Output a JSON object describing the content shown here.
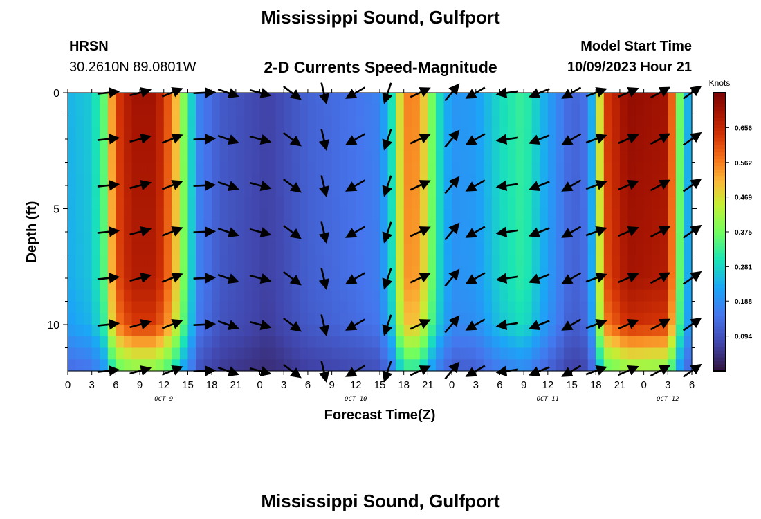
{
  "page": {
    "title": "Mississippi Sound, Gulfport",
    "station": "HRSN",
    "coordinates": "30.2610N  89.0801W",
    "subtitle": "2-D Currents Speed-Magnitude",
    "model_start_label": "Model Start Time",
    "model_start_value": "10/09/2023 Hour 21",
    "footer_title": "Mississippi Sound, Gulfport"
  },
  "chart_data": {
    "type": "heatmap",
    "title": "2-D Currents Speed-Magnitude",
    "xlabel": "Forecast Time(Z)",
    "ylabel": "Depth (ft)",
    "colorbar_label": "Knots",
    "colorbar_ticks": [
      0.094,
      0.188,
      0.281,
      0.375,
      0.469,
      0.562,
      0.656
    ],
    "colorbar_range": [
      0.0,
      0.75
    ],
    "x_range_hours": [
      0,
      78
    ],
    "x_tick_hours": [
      0,
      3,
      6,
      9,
      12,
      15,
      18,
      21,
      24,
      27,
      30,
      33,
      36,
      39,
      42,
      45,
      48,
      51,
      54,
      57,
      60,
      63,
      66,
      69,
      72,
      75,
      78
    ],
    "x_tick_labels": [
      "0",
      "3",
      "6",
      "9",
      "12",
      "15",
      "18",
      "21",
      "0",
      "3",
      "6",
      "9",
      "12",
      "15",
      "18",
      "21",
      "0",
      "3",
      "6",
      "9",
      "12",
      "15",
      "18",
      "21",
      "0",
      "3",
      "6"
    ],
    "date_labels": [
      {
        "text": "OCT 9",
        "hour": 12
      },
      {
        "text": "OCT 10",
        "hour": 36
      },
      {
        "text": "OCT 11",
        "hour": 60
      },
      {
        "text": "OCT 12",
        "hour": 75
      }
    ],
    "y_range_ft": [
      0,
      12
    ],
    "y_ticks": [
      0,
      5,
      10
    ],
    "y_minor_ticks": [
      1,
      2,
      3,
      4,
      6,
      7,
      8,
      9,
      11
    ],
    "y_inverted": true,
    "speed_profile": [
      {
        "hour": 0,
        "speed": 0.24
      },
      {
        "hour": 3,
        "speed": 0.27
      },
      {
        "hour": 4.5,
        "speed": 0.36
      },
      {
        "hour": 6,
        "speed": 0.62
      },
      {
        "hour": 8,
        "speed": 0.7
      },
      {
        "hour": 11,
        "speed": 0.7
      },
      {
        "hour": 13,
        "speed": 0.57
      },
      {
        "hour": 15,
        "speed": 0.33
      },
      {
        "hour": 16.5,
        "speed": 0.17
      },
      {
        "hour": 19,
        "speed": 0.11
      },
      {
        "hour": 25,
        "speed": 0.07
      },
      {
        "hour": 30,
        "speed": 0.12
      },
      {
        "hour": 36,
        "speed": 0.15
      },
      {
        "hour": 39,
        "speed": 0.17
      },
      {
        "hour": 40.5,
        "speed": 0.3
      },
      {
        "hour": 42,
        "speed": 0.56
      },
      {
        "hour": 44,
        "speed": 0.55
      },
      {
        "hour": 46,
        "speed": 0.32
      },
      {
        "hour": 48,
        "speed": 0.2
      },
      {
        "hour": 51,
        "speed": 0.21
      },
      {
        "hour": 54,
        "speed": 0.29
      },
      {
        "hour": 57,
        "speed": 0.33
      },
      {
        "hour": 60,
        "speed": 0.22
      },
      {
        "hour": 63,
        "speed": 0.12
      },
      {
        "hour": 65,
        "speed": 0.15
      },
      {
        "hour": 66,
        "speed": 0.32
      },
      {
        "hour": 67,
        "speed": 0.62
      },
      {
        "hour": 70,
        "speed": 0.72
      },
      {
        "hour": 75,
        "speed": 0.7
      },
      {
        "hour": 76,
        "speed": 0.48
      },
      {
        "hour": 77,
        "speed": 0.26
      },
      {
        "hour": 78,
        "speed": 0.22
      }
    ],
    "depth_factor": [
      {
        "depth": 0,
        "factor": 1.0
      },
      {
        "depth": 8,
        "factor": 0.97
      },
      {
        "depth": 10,
        "factor": 0.9
      },
      {
        "depth": 11,
        "factor": 0.72
      },
      {
        "depth": 12,
        "factor": 0.55
      }
    ],
    "direction_profile_deg": [
      {
        "hour": 0,
        "angle": 5
      },
      {
        "hour": 9,
        "angle": -15
      },
      {
        "hour": 15,
        "angle": -25
      },
      {
        "hour": 19,
        "angle": 20
      },
      {
        "hour": 24,
        "angle": 15
      },
      {
        "hour": 27,
        "angle": 20
      },
      {
        "hour": 30,
        "angle": 70
      },
      {
        "hour": 33,
        "angle": 80
      },
      {
        "hour": 36,
        "angle": 150
      },
      {
        "hour": 39,
        "angle": 170
      },
      {
        "hour": 42,
        "angle": -15
      },
      {
        "hour": 45,
        "angle": -30
      },
      {
        "hour": 48,
        "angle": -50
      },
      {
        "hour": 51,
        "angle": 150
      },
      {
        "hour": 54,
        "angle": 170
      },
      {
        "hour": 57,
        "angle": 175
      },
      {
        "hour": 60,
        "angle": 150
      },
      {
        "hour": 63,
        "angle": 150
      },
      {
        "hour": 66,
        "angle": -20
      },
      {
        "hour": 72,
        "angle": -25
      },
      {
        "hour": 78,
        "angle": -35
      }
    ],
    "arrow_hours": [
      5,
      9,
      13,
      17,
      20,
      24,
      28,
      32,
      36,
      40,
      44,
      48,
      51,
      55,
      59,
      63,
      66,
      70,
      74,
      78
    ],
    "arrow_depths": [
      0,
      2,
      4,
      6,
      8,
      10,
      12
    ]
  }
}
